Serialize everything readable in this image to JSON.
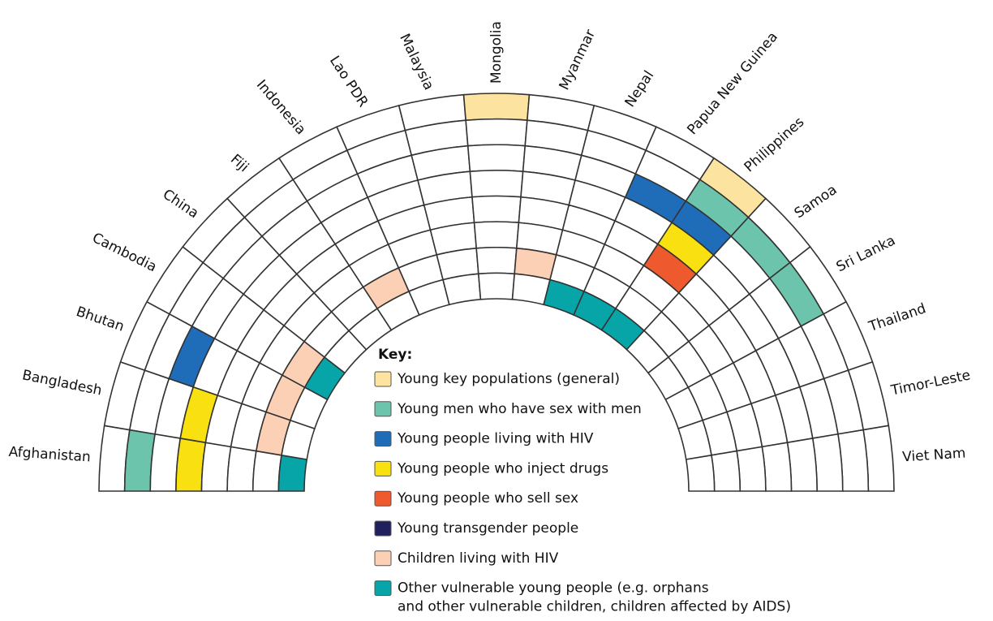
{
  "countries": [
    {
      "name": "Afghanistan",
      "categories": [
        1,
        3,
        7
      ]
    },
    {
      "name": "Bangladesh",
      "categories": [
        3,
        6
      ]
    },
    {
      "name": "Bhutan",
      "categories": [
        2,
        6
      ]
    },
    {
      "name": "Cambodia",
      "categories": [
        6,
        7
      ]
    },
    {
      "name": "China",
      "categories": []
    },
    {
      "name": "Fiji",
      "categories": []
    },
    {
      "name": "Indonesia",
      "categories": [
        6
      ]
    },
    {
      "name": "Lao PDR",
      "categories": []
    },
    {
      "name": "Malaysia",
      "categories": []
    },
    {
      "name": "Mongolia",
      "categories": [
        0
      ]
    },
    {
      "name": "Myanmar",
      "categories": [
        6
      ]
    },
    {
      "name": "Nepal",
      "categories": [
        7
      ]
    },
    {
      "name": "Papua New Guinea",
      "categories": [
        2,
        7
      ]
    },
    {
      "name": "Philippines",
      "categories": [
        0,
        1,
        2,
        3,
        4,
        7
      ]
    },
    {
      "name": "Samoa",
      "categories": [
        1
      ]
    },
    {
      "name": "Sri Lanka",
      "categories": [
        1
      ]
    },
    {
      "name": "Thailand",
      "categories": []
    },
    {
      "name": "Timor-Leste",
      "categories": []
    },
    {
      "name": "Viet Nam",
      "categories": []
    }
  ],
  "key": {
    "title": "Key:",
    "items": [
      {
        "lines": [
          "Young key populations (general)"
        ],
        "color": "#fde3a0"
      },
      {
        "lines": [
          "Young men who have sex with men"
        ],
        "color": "#6cc4ac"
      },
      {
        "lines": [
          "Young people living with HIV"
        ],
        "color": "#1f6db8"
      },
      {
        "lines": [
          "Young people who inject drugs"
        ],
        "color": "#f9e011"
      },
      {
        "lines": [
          "Young people who sell sex"
        ],
        "color": "#ee5a2e"
      },
      {
        "lines": [
          "Young transgender people"
        ],
        "color": "#20205f"
      },
      {
        "lines": [
          "Children living with HIV"
        ],
        "color": "#fbd0b4"
      },
      {
        "lines": [
          "Other vulnerable young people (e.g. orphans",
          "and other vulnerable children, children affected by AIDS)"
        ],
        "color": "#07a5a8"
      }
    ]
  }
}
